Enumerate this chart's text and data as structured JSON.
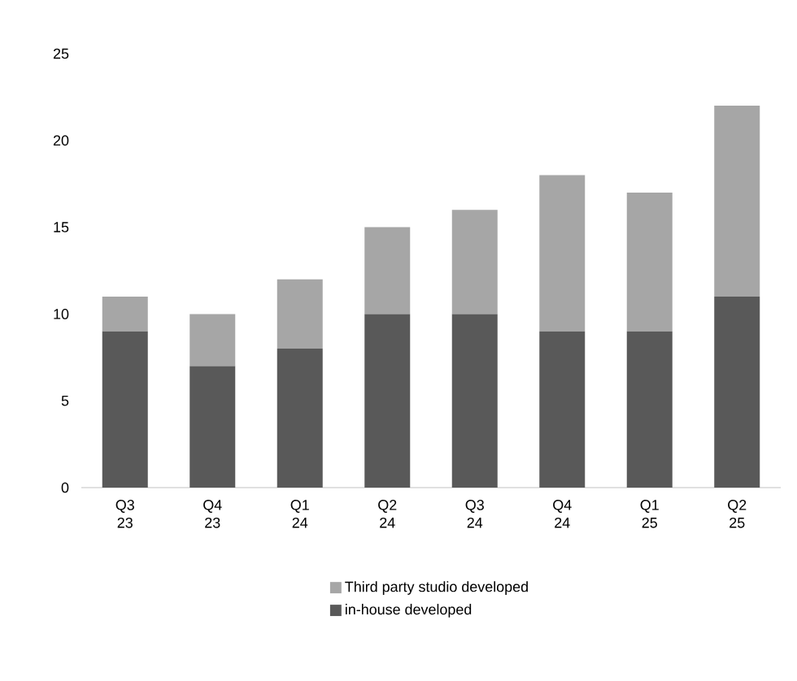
{
  "chart_data": {
    "type": "bar",
    "stacked": true,
    "categories": [
      "Q3 23",
      "Q4 23",
      "Q1 24",
      "Q2 24",
      "Q3 24",
      "Q4 24",
      "Q1 25",
      "Q2 25"
    ],
    "series": [
      {
        "name": "in-house developed",
        "color": "#595959",
        "values": [
          9,
          7,
          8,
          10,
          10,
          9,
          9,
          11
        ]
      },
      {
        "name": "Third party studio developed",
        "color": "#a6a6a6",
        "values": [
          2,
          3,
          4,
          5,
          6,
          9,
          8,
          11
        ]
      }
    ],
    "ylim": [
      0,
      25
    ],
    "yticks": [
      0,
      5,
      10,
      15,
      20,
      25
    ],
    "legend": "bottom"
  }
}
